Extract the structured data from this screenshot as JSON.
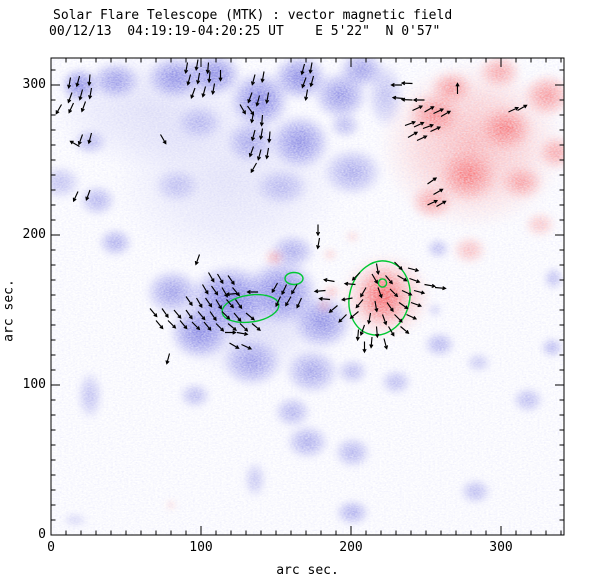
{
  "header": {
    "title": "Solar Flare Telescope (MTK) : vector magnetic field",
    "subtitle": "00/12/13  04:19:19-04:20:25 UT    E 5'22\"  N 0'57\""
  },
  "chart_data": {
    "type": "heatmap",
    "description": "Vector magnetogram: blue = negative polarity, red = positive polarity, black segments = transverse field vectors, green = strong-field contours",
    "xlabel": "arc sec.",
    "ylabel": "arc sec.",
    "xlim": [
      0,
      342
    ],
    "ylim": [
      0,
      318
    ],
    "x_major_ticks": [
      0,
      100,
      200,
      300
    ],
    "y_major_ticks": [
      0,
      100,
      200,
      300
    ],
    "minor_tick_interval": 10,
    "colors": {
      "negative_polarity": "#5a5ad8",
      "positive_polarity": "#fa5050",
      "contour": "#00c832",
      "vector": "#000000",
      "axis": "#000000",
      "background": "#ffffff"
    },
    "vector_length_arcsec": 7,
    "negative_blobs": [
      [
        19,
        300,
        13,
        12,
        0.85
      ],
      [
        43,
        303,
        17,
        13,
        0.7
      ],
      [
        83,
        305,
        20,
        15,
        0.8
      ],
      [
        109,
        307,
        19,
        15,
        0.85
      ],
      [
        139,
        290,
        21,
        20,
        0.9
      ],
      [
        166,
        305,
        19,
        16,
        0.85
      ],
      [
        193,
        293,
        19,
        17,
        0.75
      ],
      [
        133,
        262,
        17,
        15,
        0.6
      ],
      [
        166,
        262,
        21,
        19,
        0.8
      ],
      [
        99,
        275,
        16,
        12,
        0.45
      ],
      [
        26,
        262,
        12,
        9,
        0.5
      ],
      [
        6,
        235,
        15,
        12,
        0.45
      ],
      [
        31,
        223,
        13,
        11,
        0.55
      ],
      [
        43,
        195,
        12,
        10,
        0.6
      ],
      [
        84,
        233,
        16,
        12,
        0.4
      ],
      [
        154,
        232,
        19,
        13,
        0.45
      ],
      [
        201,
        242,
        21,
        17,
        0.6
      ],
      [
        207,
        310,
        16,
        13,
        0.7
      ],
      [
        119,
        157,
        28,
        24,
        0.95
      ],
      [
        99,
        135,
        21,
        19,
        0.85
      ],
      [
        154,
        162,
        25,
        23,
        0.9
      ],
      [
        181,
        142,
        21,
        19,
        0.8
      ],
      [
        81,
        162,
        19,
        16,
        0.7
      ],
      [
        134,
        115,
        21,
        17,
        0.7
      ],
      [
        174,
        109,
        19,
        16,
        0.65
      ],
      [
        161,
        189,
        16,
        12,
        0.6
      ],
      [
        259,
        127,
        11,
        9,
        0.55
      ],
      [
        285,
        115,
        9,
        7,
        0.4
      ],
      [
        26,
        93,
        9,
        17,
        0.45
      ],
      [
        96,
        93,
        11,
        9,
        0.5
      ],
      [
        161,
        82,
        13,
        11,
        0.55
      ],
      [
        171,
        62,
        15,
        12,
        0.6
      ],
      [
        201,
        55,
        13,
        11,
        0.55
      ],
      [
        230,
        102,
        11,
        9,
        0.5
      ],
      [
        201,
        109,
        11,
        9,
        0.5
      ],
      [
        318,
        90,
        11,
        9,
        0.5
      ],
      [
        283,
        29,
        11,
        9,
        0.5
      ],
      [
        201,
        15,
        12,
        9,
        0.6
      ],
      [
        136,
        37,
        8,
        13,
        0.4
      ],
      [
        335,
        171,
        7,
        8,
        0.5
      ],
      [
        196,
        273,
        11,
        9,
        0.5
      ],
      [
        16,
        10,
        9,
        5,
        0.3
      ],
      [
        119,
        237,
        80,
        60,
        0.18
      ],
      [
        66,
        283,
        67,
        40,
        0.2
      ],
      [
        133,
        143,
        53,
        40,
        0.25
      ],
      [
        223,
        293,
        13,
        23,
        0.45
      ],
      [
        258,
        191,
        8,
        7,
        0.5
      ],
      [
        334,
        125,
        8,
        7,
        0.55
      ],
      [
        256,
        150,
        5,
        5,
        0.35
      ]
    ],
    "positive_blobs": [
      [
        281,
        260,
        63,
        57,
        0.45
      ],
      [
        256,
        280,
        19,
        16,
        0.7
      ],
      [
        303,
        271,
        19,
        16,
        0.8
      ],
      [
        278,
        240,
        21,
        19,
        0.8
      ],
      [
        314,
        235,
        15,
        12,
        0.6
      ],
      [
        254,
        222,
        15,
        12,
        0.6
      ],
      [
        331,
        293,
        17,
        15,
        0.7
      ],
      [
        337,
        255,
        13,
        12,
        0.6
      ],
      [
        267,
        298,
        15,
        12,
        0.65
      ],
      [
        299,
        309,
        15,
        12,
        0.6
      ],
      [
        279,
        190,
        12,
        10,
        0.45
      ],
      [
        326,
        207,
        11,
        9,
        0.4
      ],
      [
        221,
        159,
        17,
        20,
        0.95
      ],
      [
        223,
        159,
        31,
        29,
        0.55
      ],
      [
        149,
        185,
        7,
        6,
        0.5
      ],
      [
        187,
        162,
        6,
        5,
        0.45
      ],
      [
        182,
        153,
        5,
        5,
        0.4
      ],
      [
        186,
        187,
        5,
        4,
        0.35
      ],
      [
        80,
        20,
        3,
        3,
        0.4
      ],
      [
        201,
        199,
        5,
        4,
        0.3
      ]
    ],
    "contours": [
      [
        219,
        158,
        20,
        25,
        15
      ],
      [
        221,
        168,
        2.7,
        2.7,
        0
      ],
      [
        133,
        151,
        19,
        9,
        -8
      ],
      [
        162,
        171,
        6,
        4,
        0
      ]
    ],
    "vectors": [
      [
        13,
        305,
        -100
      ],
      [
        19,
        306,
        -105
      ],
      [
        26,
        307,
        -95
      ],
      [
        14,
        295,
        -110
      ],
      [
        21,
        297,
        -105
      ],
      [
        27,
        298,
        -100
      ],
      [
        7,
        287,
        -120
      ],
      [
        15,
        288,
        -115
      ],
      [
        23,
        289,
        -110
      ],
      [
        21,
        267,
        -110
      ],
      [
        27,
        268,
        -105
      ],
      [
        19,
        259,
        150
      ],
      [
        91,
        315,
        -100
      ],
      [
        98,
        317,
        -100
      ],
      [
        105,
        315,
        -95
      ],
      [
        93,
        307,
        -105
      ],
      [
        99,
        308,
        -100
      ],
      [
        106,
        309,
        -95
      ],
      [
        113,
        310,
        -90
      ],
      [
        96,
        298,
        -110
      ],
      [
        103,
        299,
        -105
      ],
      [
        109,
        301,
        -100
      ],
      [
        136,
        307,
        -105
      ],
      [
        142,
        309,
        -100
      ],
      [
        134,
        295,
        -110
      ],
      [
        139,
        293,
        -105
      ],
      [
        145,
        295,
        -100
      ],
      [
        135,
        282,
        -100
      ],
      [
        141,
        280,
        -95
      ],
      [
        136,
        270,
        -105
      ],
      [
        141,
        271,
        -100
      ],
      [
        146,
        269,
        -95
      ],
      [
        135,
        259,
        -110
      ],
      [
        140,
        257,
        -105
      ],
      [
        145,
        258,
        -100
      ],
      [
        137,
        248,
        -120
      ],
      [
        126,
        287,
        -60
      ],
      [
        131,
        286,
        -55
      ],
      [
        169,
        314,
        -105
      ],
      [
        174,
        315,
        -100
      ],
      [
        170,
        305,
        -110
      ],
      [
        175,
        306,
        -105
      ],
      [
        171,
        297,
        -100
      ],
      [
        73,
        267,
        -60
      ],
      [
        99,
        187,
        -110
      ],
      [
        178,
        207,
        -90
      ],
      [
        179,
        198,
        -100
      ],
      [
        79,
        121,
        -105
      ],
      [
        18,
        229,
        -115
      ],
      [
        26,
        230,
        -110
      ],
      [
        105,
        175,
        -60
      ],
      [
        111,
        174,
        -60
      ],
      [
        118,
        173,
        -55
      ],
      [
        101,
        167,
        -60
      ],
      [
        107,
        166,
        -55
      ],
      [
        114,
        165,
        -60
      ],
      [
        121,
        165,
        -50
      ],
      [
        90,
        159,
        -55
      ],
      [
        97,
        158,
        -60
      ],
      [
        103,
        158,
        -55
      ],
      [
        110,
        157,
        -60
      ],
      [
        117,
        157,
        -50
      ],
      [
        123,
        157,
        -55
      ],
      [
        66,
        151,
        -50
      ],
      [
        74,
        151,
        -55
      ],
      [
        82,
        150,
        -50
      ],
      [
        90,
        150,
        -55
      ],
      [
        98,
        149,
        -50
      ],
      [
        106,
        149,
        -55
      ],
      [
        114,
        149,
        -45
      ],
      [
        122,
        148,
        -50
      ],
      [
        130,
        148,
        -40
      ],
      [
        70,
        143,
        -50
      ],
      [
        78,
        143,
        -45
      ],
      [
        86,
        143,
        -50
      ],
      [
        94,
        142,
        -45
      ],
      [
        102,
        142,
        -50
      ],
      [
        110,
        141,
        -45
      ],
      [
        118,
        141,
        -40
      ],
      [
        126,
        141,
        -45
      ],
      [
        134,
        141,
        -40
      ],
      [
        116,
        135,
        0
      ],
      [
        124,
        135,
        -10
      ],
      [
        119,
        128,
        -30
      ],
      [
        127,
        127,
        -25
      ],
      [
        124,
        161,
        185
      ],
      [
        138,
        162,
        180
      ],
      [
        151,
        168,
        -120
      ],
      [
        157,
        167,
        -115
      ],
      [
        164,
        167,
        -120
      ],
      [
        153,
        159,
        -115
      ],
      [
        160,
        159,
        -120
      ],
      [
        167,
        158,
        -115
      ],
      [
        183,
        163,
        185
      ],
      [
        189,
        169,
        170
      ],
      [
        191,
        153,
        -140
      ],
      [
        197,
        147,
        -135
      ],
      [
        186,
        157,
        175
      ],
      [
        217,
        181,
        -80
      ],
      [
        229,
        182,
        -45
      ],
      [
        238,
        178,
        -15
      ],
      [
        206,
        175,
        -135
      ],
      [
        214,
        174,
        -60
      ],
      [
        223,
        173,
        -50
      ],
      [
        231,
        173,
        -30
      ],
      [
        239,
        171,
        -20
      ],
      [
        203,
        167,
        175
      ],
      [
        210,
        165,
        -120
      ],
      [
        218,
        165,
        -70
      ],
      [
        226,
        164,
        -45
      ],
      [
        234,
        163,
        -25
      ],
      [
        242,
        163,
        -15
      ],
      [
        201,
        158,
        -170
      ],
      [
        208,
        157,
        -130
      ],
      [
        216,
        156,
        -80
      ],
      [
        224,
        155,
        -55
      ],
      [
        232,
        155,
        -35
      ],
      [
        240,
        155,
        -20
      ],
      [
        205,
        149,
        -140
      ],
      [
        213,
        148,
        -100
      ],
      [
        221,
        147,
        -70
      ],
      [
        229,
        147,
        -45
      ],
      [
        237,
        147,
        -25
      ],
      [
        209,
        140,
        -110
      ],
      [
        217,
        139,
        -85
      ],
      [
        225,
        139,
        -60
      ],
      [
        233,
        139,
        -40
      ],
      [
        214,
        132,
        -95
      ],
      [
        222,
        131,
        -75
      ],
      [
        205,
        137,
        -95
      ],
      [
        209,
        129,
        -90
      ],
      [
        249,
        167,
        -10
      ],
      [
        256,
        165,
        -5
      ],
      [
        234,
        300,
        180
      ],
      [
        241,
        301,
        178
      ],
      [
        235,
        291,
        175
      ],
      [
        241,
        290,
        178
      ],
      [
        249,
        290,
        180
      ],
      [
        241,
        283,
        25
      ],
      [
        249,
        282,
        30
      ],
      [
        255,
        281,
        25
      ],
      [
        260,
        279,
        30
      ],
      [
        236,
        273,
        20
      ],
      [
        242,
        272,
        25
      ],
      [
        248,
        271,
        20
      ],
      [
        253,
        269,
        25
      ],
      [
        238,
        265,
        30
      ],
      [
        244,
        263,
        25
      ],
      [
        305,
        282,
        25
      ],
      [
        311,
        283,
        30
      ],
      [
        271,
        294,
        90
      ],
      [
        251,
        234,
        35
      ],
      [
        255,
        227,
        30
      ],
      [
        251,
        220,
        25
      ],
      [
        257,
        219,
        30
      ]
    ]
  }
}
